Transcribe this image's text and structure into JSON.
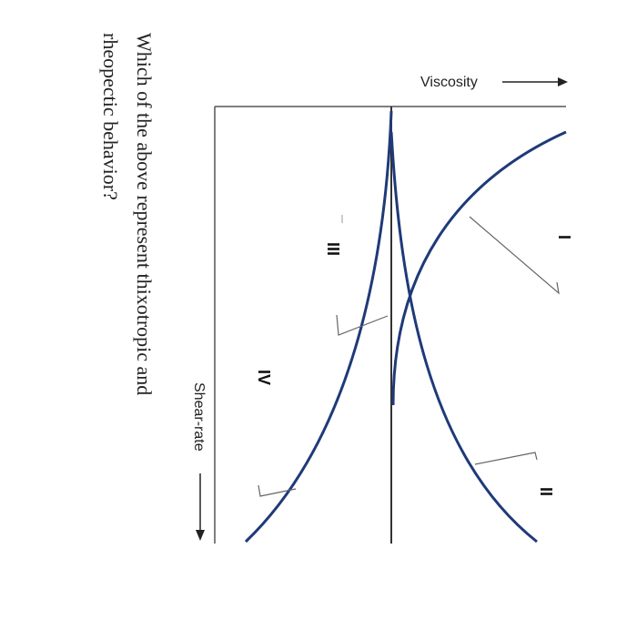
{
  "figure": {
    "x_axis_label": "Shear-rate",
    "y_axis_label": "Viscosity",
    "curve_labels": [
      "I",
      "II",
      "III",
      "IV"
    ],
    "curve_color": "#1f3a78"
  },
  "question": {
    "line1": "Which of the above represent thixotropic and",
    "line2": "rheopectic behavior?"
  }
}
